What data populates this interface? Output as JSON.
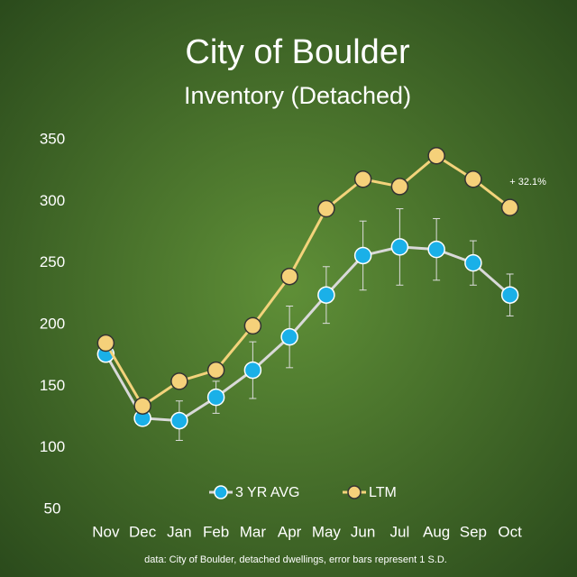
{
  "chart_data": {
    "type": "line",
    "title": "City of Boulder",
    "subtitle": "Inventory (Detached)",
    "categories": [
      "Nov",
      "Dec",
      "Jan",
      "Feb",
      "Mar",
      "Apr",
      "May",
      "Jun",
      "Jul",
      "Aug",
      "Sep",
      "Oct"
    ],
    "series": [
      {
        "name": "3 YR AVG",
        "color": "#1ab0e8",
        "line_color": "#d9d9d9",
        "values": [
          176,
          124,
          122,
          141,
          163,
          190,
          224,
          256,
          263,
          261,
          250,
          224
        ],
        "errors": [
          3,
          6,
          16,
          13,
          23,
          25,
          23,
          28,
          31,
          25,
          18,
          17
        ]
      },
      {
        "name": "LTM",
        "color": "#f5d17a",
        "line_color": "#f3d37b",
        "values": [
          185,
          134,
          154,
          163,
          199,
          239,
          294,
          318,
          312,
          337,
          318,
          295
        ]
      }
    ],
    "annotation": "+ 32.1%",
    "note": "data: City of Boulder, detached dwellings, error bars represent 1 S.D.",
    "ylim": [
      50,
      350
    ],
    "yticks": [
      50,
      100,
      150,
      200,
      250,
      300,
      350
    ],
    "legend": "bottom",
    "grid": false
  }
}
